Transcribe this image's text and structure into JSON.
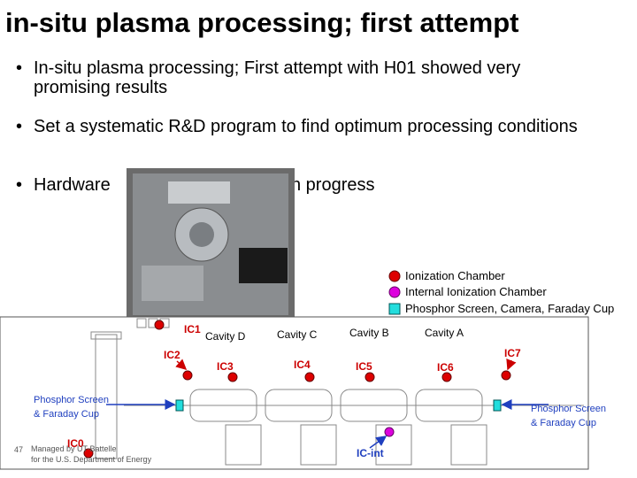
{
  "title": "in-situ plasma processing; first attempt",
  "bullets": [
    "In-situ plasma processing; First attempt with H01 showed very promising results",
    "Set a systematic R&D program to find optimum processing conditions",
    {
      "before": "Hardware",
      "after": "n progress"
    }
  ],
  "legend": [
    "Ionization Chamber",
    "Internal Ionization Chamber",
    "Phosphor Screen, Camera, Faraday Cup"
  ],
  "cavities": [
    "Cavity D",
    "Cavity C",
    "Cavity B",
    "Cavity A"
  ],
  "chambers": [
    "IC1",
    "IC2",
    "IC3",
    "IC4",
    "IC5",
    "IC6",
    "IC7",
    "IC0",
    "IC-int"
  ],
  "screens": {
    "left": "Phosphor Screen & Faraday Cup",
    "right": "Phosphor Screen & Faraday Cup"
  },
  "footer": {
    "page": "47",
    "line1": "Managed by UT-Battelle",
    "line2": "for the U.S. Department of Energy"
  }
}
